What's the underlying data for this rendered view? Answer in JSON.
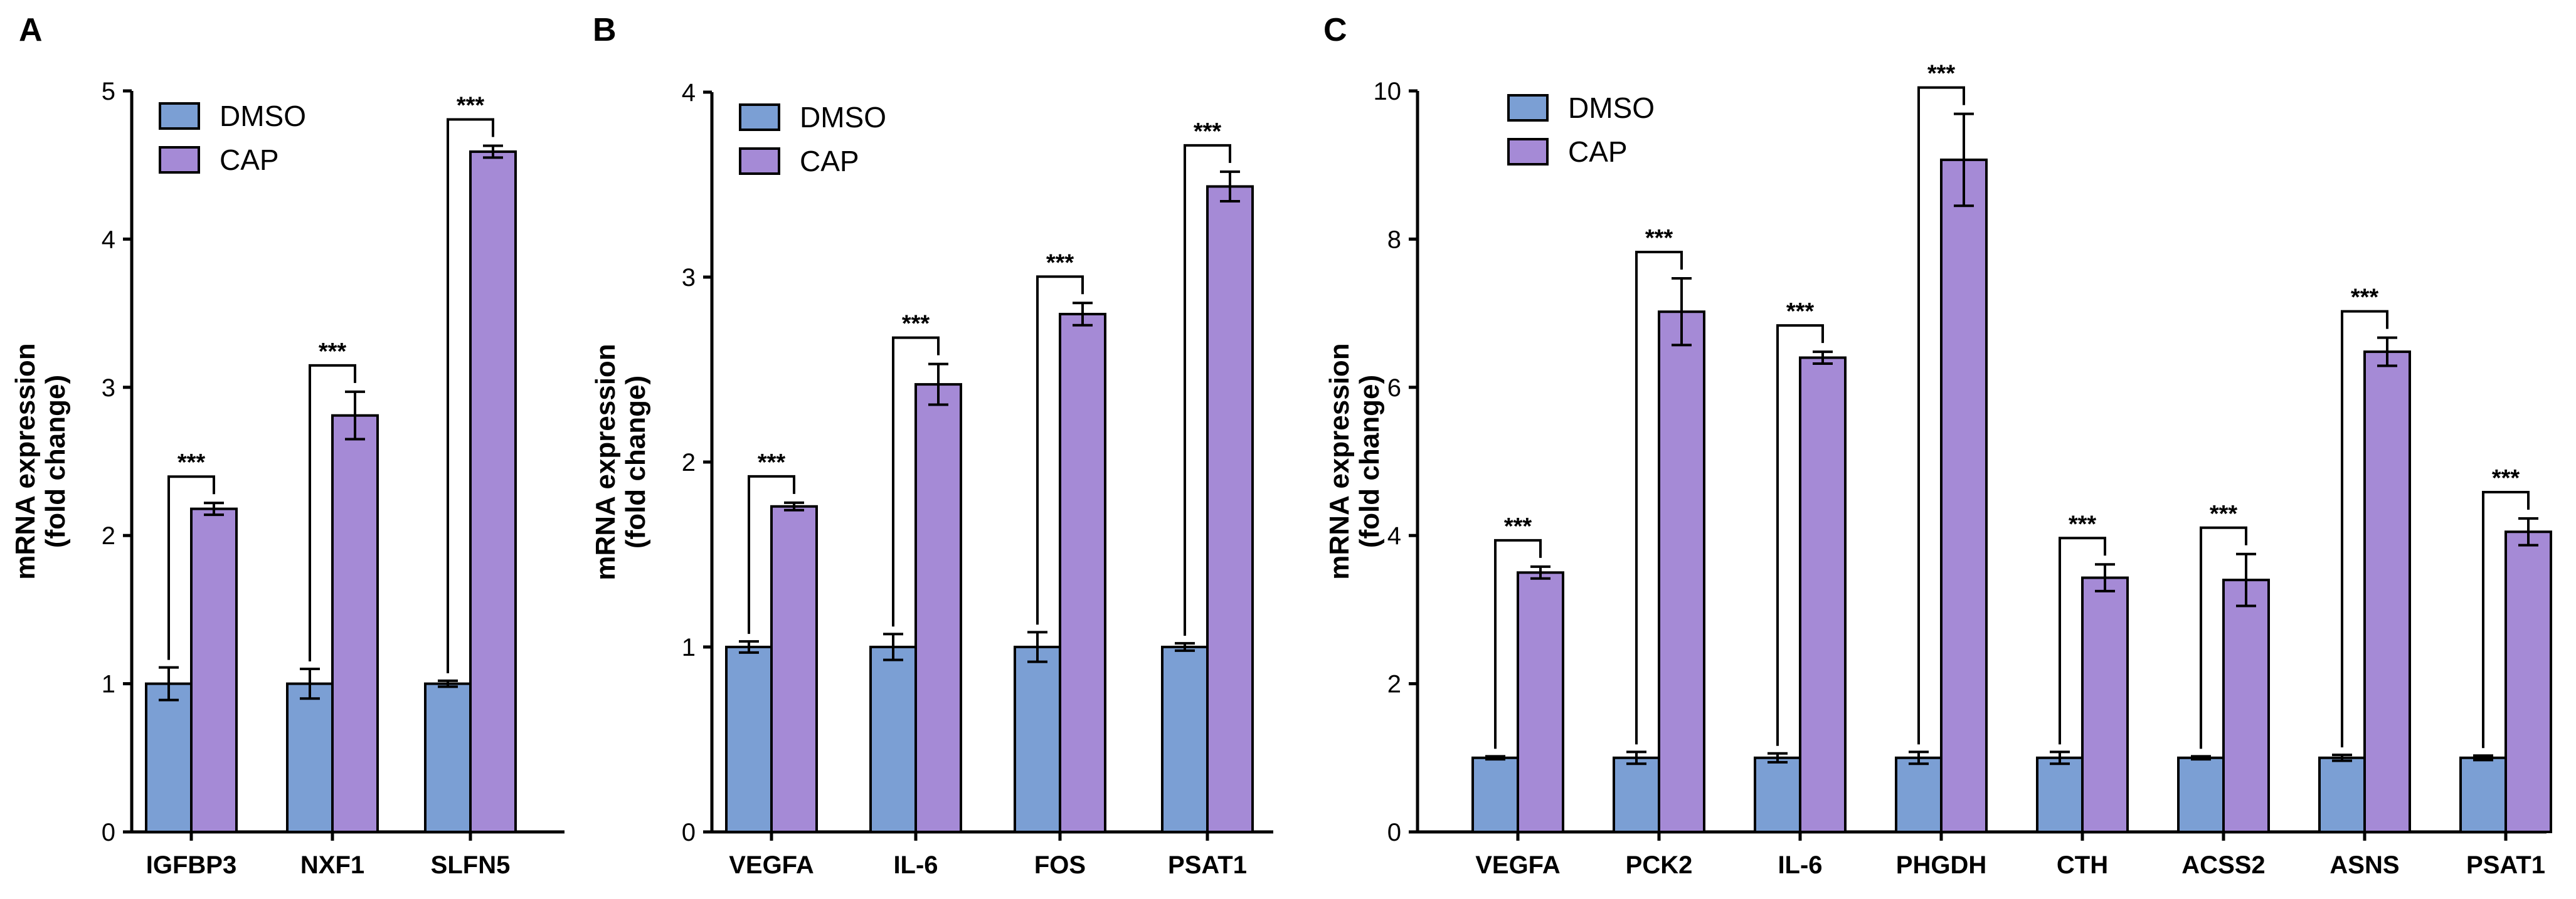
{
  "chart_data": [
    {
      "type": "bar",
      "panel_label": "A",
      "ylabel_line1": "mRNA expression",
      "ylabel_line2": "(fold change)",
      "ylim": [
        0,
        5
      ],
      "yticks": [
        0,
        1,
        2,
        3,
        4,
        5
      ],
      "categories": [
        "IGFBP3",
        "NXF1",
        "SLFN5"
      ],
      "series": [
        {
          "name": "DMSO",
          "color": "#7B9FD4",
          "values": [
            1.0,
            1.0,
            1.0
          ],
          "errors": [
            0.11,
            0.1,
            0.02
          ]
        },
        {
          "name": "CAP",
          "color": "#A58AD6",
          "values": [
            2.18,
            2.81,
            4.59
          ],
          "errors": [
            0.04,
            0.16,
            0.04
          ]
        }
      ],
      "significance": [
        "***",
        "***",
        "***"
      ],
      "legend_position": "top-left"
    },
    {
      "type": "bar",
      "panel_label": "B",
      "ylabel_line1": "mRNA expression",
      "ylabel_line2": "(fold change)",
      "ylim": [
        0,
        4
      ],
      "yticks": [
        0,
        1,
        2,
        3,
        4
      ],
      "categories": [
        "VEGFA",
        "IL-6",
        "FOS",
        "PSAT1"
      ],
      "series": [
        {
          "name": "DMSO",
          "color": "#7B9FD4",
          "values": [
            1.0,
            1.0,
            1.0,
            1.0
          ],
          "errors": [
            0.03,
            0.07,
            0.08,
            0.02
          ]
        },
        {
          "name": "CAP",
          "color": "#A58AD6",
          "values": [
            1.76,
            2.42,
            2.8,
            3.49
          ],
          "errors": [
            0.02,
            0.11,
            0.06,
            0.08
          ]
        }
      ],
      "significance": [
        "***",
        "***",
        "***",
        "***"
      ],
      "legend_position": "top-left"
    },
    {
      "type": "bar",
      "panel_label": "C",
      "ylabel_line1": "mRNA expression",
      "ylabel_line2": "(fold change)",
      "ylim": [
        0,
        10
      ],
      "yticks": [
        0,
        2,
        4,
        6,
        8,
        10
      ],
      "categories": [
        "VEGFA",
        "PCK2",
        "IL-6",
        "PHGDH",
        "CTH",
        "ACSS2",
        "ASNS",
        "PSAT1"
      ],
      "series": [
        {
          "name": "DMSO",
          "color": "#7B9FD4",
          "values": [
            1.0,
            1.0,
            1.0,
            1.0,
            1.0,
            1.0,
            1.0,
            1.0
          ],
          "errors": [
            0.02,
            0.08,
            0.06,
            0.08,
            0.08,
            0.02,
            0.04,
            0.03
          ]
        },
        {
          "name": "CAP",
          "color": "#A58AD6",
          "values": [
            3.5,
            7.02,
            6.4,
            9.07,
            3.43,
            3.4,
            6.48,
            4.05
          ],
          "errors": [
            0.08,
            0.45,
            0.08,
            0.62,
            0.18,
            0.35,
            0.19,
            0.18
          ]
        }
      ],
      "significance": [
        "***",
        "***",
        "***",
        "***",
        "***",
        "***",
        "***",
        "***"
      ],
      "legend_position": "top-left"
    }
  ]
}
